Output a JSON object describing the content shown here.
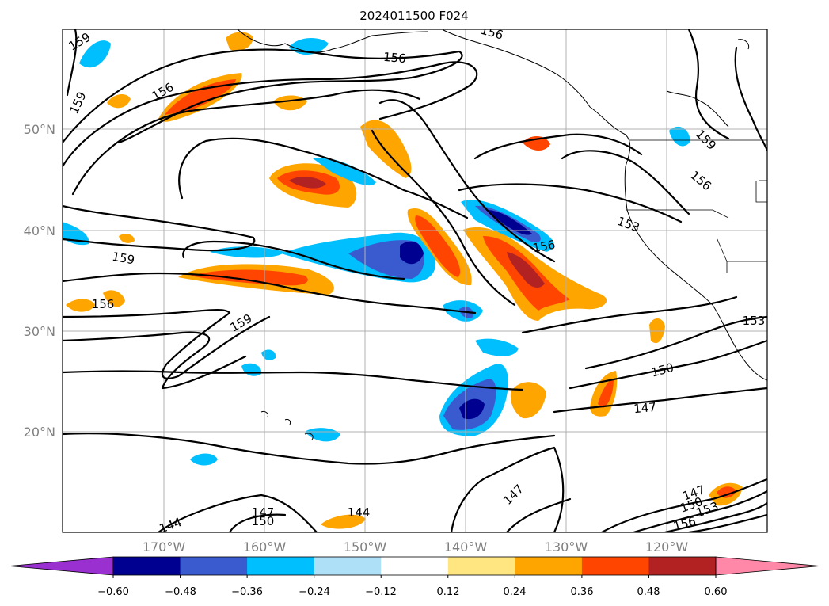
{
  "title": "2024011500 F024",
  "map": {
    "lat_labels": [
      "50°N",
      "40°N",
      "30°N",
      "20°N"
    ],
    "lon_labels": [
      "170°W",
      "160°W",
      "150°W",
      "140°W",
      "130°W",
      "120°W"
    ],
    "contour_labels": [
      "159",
      "159",
      "156",
      "156",
      "159",
      "156",
      "156",
      "153",
      "156",
      "159",
      "156",
      "159",
      "153",
      "150",
      "147",
      "147",
      "147",
      "150",
      "153",
      "156",
      "147",
      "150",
      "144",
      "144"
    ],
    "contour_color": "#000000",
    "gridlines": true
  },
  "colorbar": {
    "ticks": [
      "−0.60",
      "−0.48",
      "−0.36",
      "−0.24",
      "−0.12",
      "0.12",
      "0.24",
      "0.36",
      "0.48",
      "0.60"
    ],
    "colors": [
      "#9b30d0",
      "#000090",
      "#3a5bd0",
      "#00bfff",
      "#aee0f8",
      "#ffffff",
      "#ffe680",
      "#ffa500",
      "#ff4500",
      "#b22222",
      "#ff88a8"
    ],
    "extend": "both"
  }
}
